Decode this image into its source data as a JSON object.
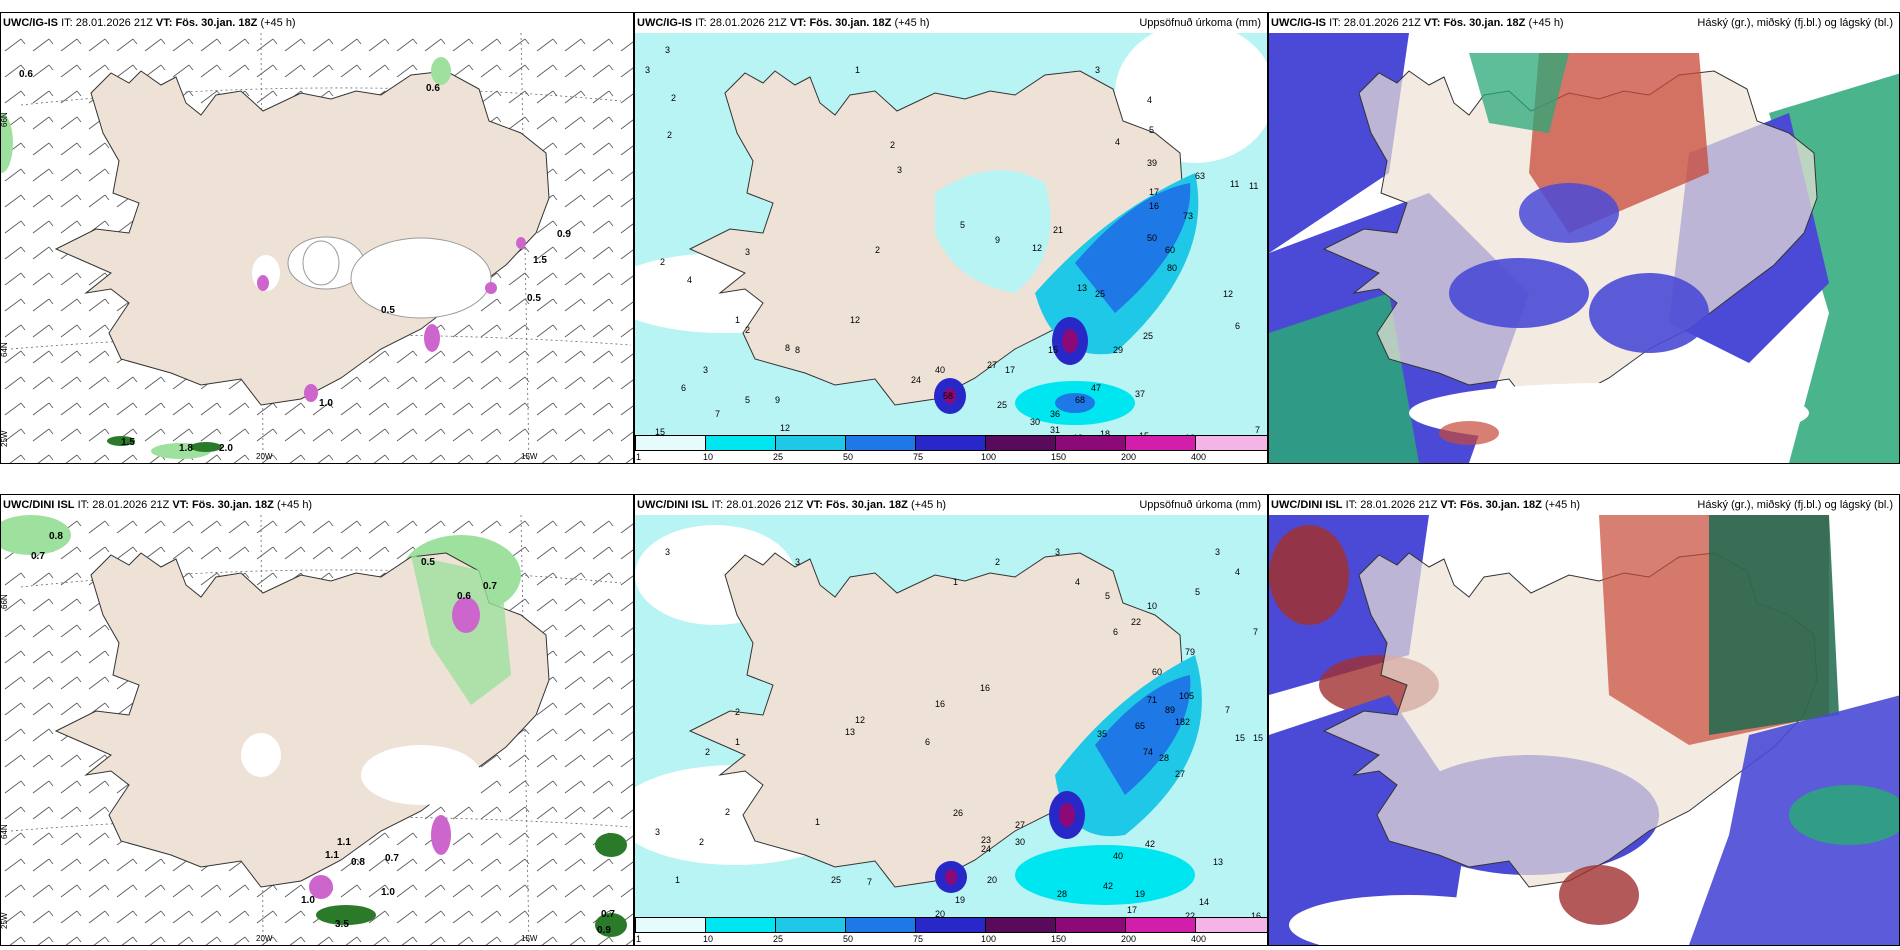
{
  "panels": [
    {
      "model": "UWC/IG-IS",
      "it_label": "IT:",
      "it": "28.01.2026 21Z",
      "vt_label": "VT:",
      "vt": "Fös. 30.jan. 18Z",
      "lead": "(+45 h)",
      "title": ""
    },
    {
      "model": "UWC/IG-IS",
      "it_label": "IT:",
      "it": "28.01.2026 21Z",
      "vt_label": "VT:",
      "vt": "Fös. 30.jan. 18Z",
      "lead": "(+45 h)",
      "title": "Uppsöfnuð úrkoma (mm)"
    },
    {
      "model": "UWC/IG-IS",
      "it_label": "IT:",
      "it": "28.01.2026 21Z",
      "vt_label": "VT:",
      "vt": "Fös. 30.jan. 18Z",
      "lead": "(+45 h)",
      "title": "Háský (gr.), miðský (fj.bl.) og lágský (bl.)"
    },
    {
      "model": "UWC/DINI ISL",
      "it_label": "IT:",
      "it": "28.01.2026 21Z",
      "vt_label": "VT:",
      "vt": "Fös. 30.jan. 18Z",
      "lead": "(+45 h)",
      "title": ""
    },
    {
      "model": "UWC/DINI ISL",
      "it_label": "IT:",
      "it": "28.01.2026 21Z",
      "vt_label": "VT:",
      "vt": "Fös. 30.jan. 18Z",
      "lead": "(+45 h)",
      "title": "Uppsöfnuð úrkoma (mm)"
    },
    {
      "model": "UWC/DINI ISL",
      "it_label": "IT:",
      "it": "28.01.2026 21Z",
      "vt_label": "VT:",
      "vt": "Fös. 30.jan. 18Z",
      "lead": "(+45 h)",
      "title": "Háský (gr.), miðský (fj.bl.) og lágský (bl.)"
    }
  ],
  "axes": {
    "lat_66": "66N",
    "lat_64": "64N",
    "lat_65": "65N",
    "lon_20": "20W",
    "lon_15": "15W",
    "lon_25": "25W"
  },
  "legend": {
    "ticks": [
      "1",
      "10",
      "25",
      "50",
      "75",
      "100",
      "150",
      "200",
      "400"
    ],
    "colors": [
      "#e6fbfb",
      "#00e6f0",
      "#1ec8e6",
      "#1e78e6",
      "#2828c8",
      "#5a0a5a",
      "#8c0a78",
      "#d21eaa",
      "#f5b4e6"
    ]
  },
  "wind_labels_top": [
    "0.6",
    "0.6",
    "0.9",
    "1.5",
    "0.5",
    "0.5",
    "1.0",
    "1.5",
    "1.8",
    "2.0"
  ],
  "wind_labels_bottom": [
    "0.8",
    "0.7",
    "0.5",
    "0.6",
    "0.7",
    "1.0",
    "1.1",
    "1.1",
    "0.8",
    "0.7",
    "1.0",
    "3.5",
    "0.7",
    "0.9"
  ],
  "precip_top": [
    "3",
    "3",
    "2",
    "2",
    "2",
    "1",
    "4",
    "2",
    "3",
    "5",
    "2",
    "21",
    "12",
    "9",
    "12",
    "8",
    "13",
    "15",
    "17",
    "25",
    "27",
    "24",
    "40",
    "58",
    "25",
    "36",
    "30",
    "31",
    "68",
    "47",
    "37",
    "25",
    "29",
    "17",
    "16",
    "39",
    "50",
    "60",
    "73",
    "80",
    "63",
    "3",
    "4",
    "5",
    "4",
    "11",
    "11",
    "12",
    "6",
    "7",
    "12",
    "15",
    "18",
    "19",
    "10",
    "12",
    "9",
    "5",
    "7",
    "15",
    "6",
    "8",
    "3",
    "1",
    "2",
    "3"
  ],
  "precip_bottom": [
    "3",
    "2",
    "1",
    "2",
    "3",
    "2",
    "1",
    "16",
    "13",
    "12",
    "16",
    "26",
    "23",
    "24",
    "27",
    "35",
    "30",
    "42",
    "40",
    "42",
    "28",
    "19",
    "17",
    "14",
    "16",
    "20",
    "20",
    "22",
    "15",
    "15",
    "7",
    "28",
    "27",
    "74",
    "60",
    "79",
    "89",
    "105",
    "182",
    "71",
    "65",
    "22",
    "10",
    "6",
    "5",
    "4",
    "3",
    "2",
    "1",
    "7",
    "5",
    "4",
    "3",
    "3",
    "2",
    "1",
    "25",
    "19",
    "11",
    "13",
    "6",
    "7"
  ],
  "colors": {
    "land": "#eee2d6",
    "sea_precip": "#b8f4f4",
    "low_cloud": "#4a4ad6",
    "mid_cloud": "#2aa878",
    "high_cloud": "#c84838"
  }
}
